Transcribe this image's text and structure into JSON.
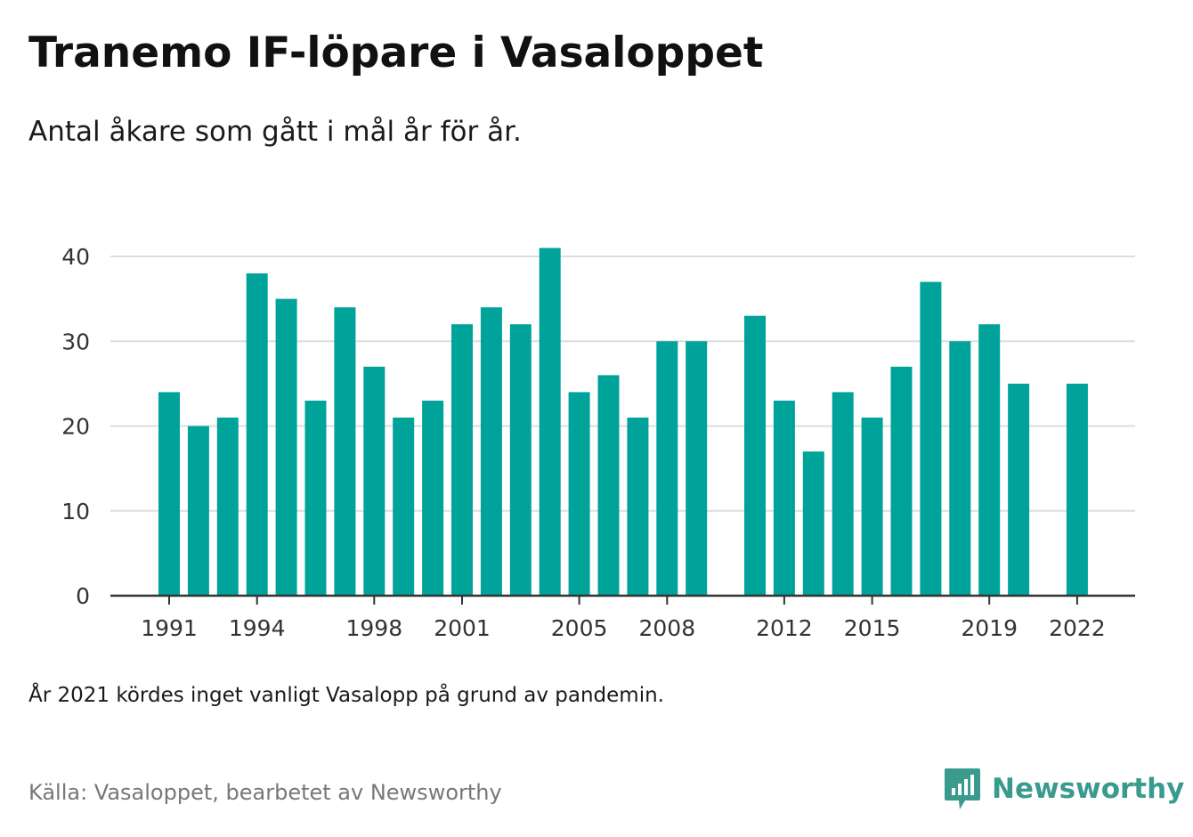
{
  "title": "Tranemo IF-löpare i Vasaloppet",
  "subtitle": "Antal åkare som gått i mål år för år.",
  "note": "År 2021 kördes inget vanligt Vasalopp på grund av pandemin.",
  "source": "Källa: Vasaloppet, bearbetet av Newsworthy",
  "logo": {
    "text": "Newsworthy",
    "icon": "newsworthy-bar-chart-icon",
    "color": "#3a9a8e"
  },
  "chart_data": {
    "type": "bar",
    "x": [
      1991,
      1992,
      1993,
      1994,
      1995,
      1996,
      1997,
      1998,
      1999,
      2000,
      2001,
      2002,
      2003,
      2004,
      2005,
      2006,
      2007,
      2008,
      2009,
      2010,
      2011,
      2012,
      2013,
      2014,
      2015,
      2016,
      2017,
      2018,
      2019,
      2020,
      2021,
      2022
    ],
    "values": [
      24,
      20,
      21,
      38,
      35,
      23,
      34,
      27,
      21,
      23,
      32,
      34,
      32,
      41,
      24,
      26,
      21,
      30,
      30,
      null,
      33,
      23,
      17,
      24,
      21,
      27,
      37,
      30,
      32,
      25,
      null,
      25
    ],
    "xticks": [
      "1991",
      "1994",
      "1998",
      "2001",
      "2005",
      "2008",
      "2012",
      "2015",
      "2019",
      "2022"
    ],
    "yticks": [
      "0",
      "10",
      "20",
      "30",
      "40"
    ],
    "ylim": [
      0,
      43
    ],
    "grid": true,
    "bar_color": "#00a39a",
    "grid_color": "#dddddd",
    "axis_color": "#333333"
  }
}
